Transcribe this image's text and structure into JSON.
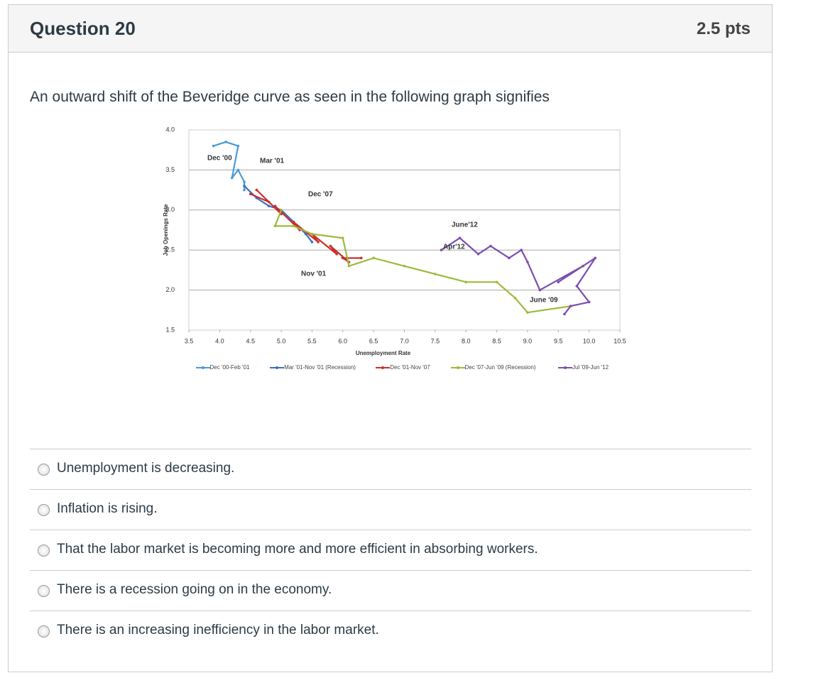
{
  "header": {
    "title": "Question 20",
    "points": "2.5 pts"
  },
  "question": "An outward shift of the Beveridge curve as seen in the following graph signifies",
  "chart_data": {
    "type": "line",
    "x_label": "Unemployment Rate",
    "y_label": "Job Openings Rate",
    "xlim": [
      3.5,
      10.5
    ],
    "xticks": [
      3.5,
      {
        "value": 4,
        "label": "4.0"
      },
      4.5,
      {
        "value": 5,
        "label": "5.0"
      },
      5.5,
      {
        "value": 6,
        "label": "6.0"
      },
      6.5,
      {
        "value": 7,
        "label": "7.0"
      },
      7.5,
      {
        "value": 8,
        "label": "8.0"
      },
      8.5,
      {
        "value": 9,
        "label": "9.0"
      },
      9.5,
      {
        "value": 10,
        "label": "10.0"
      },
      10.5
    ],
    "ylim": [
      1.5,
      4.0
    ],
    "yticks": [
      1.5,
      {
        "value": 2,
        "label": "2.0"
      },
      2.5,
      {
        "value": 3,
        "label": "3.0"
      },
      3.5,
      {
        "value": 4,
        "label": "4.0"
      }
    ],
    "grid": true,
    "annotations": [
      "Dec '00",
      "Mar '01",
      "Dec '07",
      "Nov '01",
      "June'12",
      "Apr'12",
      "June '09"
    ],
    "series": [
      {
        "name": "Dec '00-Feb '01",
        "color": "#4a9bd4",
        "x": [
          3.9,
          4.1,
          4.3,
          4.2,
          4.3,
          4.4,
          4.4
        ],
        "values": [
          3.8,
          3.85,
          3.8,
          3.4,
          3.5,
          3.35,
          3.25
        ]
      },
      {
        "name": "Mar '01-Nov '01 (Recession)",
        "color": "#3a6fc0",
        "x": [
          4.4,
          4.6,
          4.8,
          5.0,
          5.2,
          5.4,
          5.5
        ],
        "values": [
          3.3,
          3.15,
          3.05,
          3.0,
          2.85,
          2.7,
          2.6
        ]
      },
      {
        "name": "Dec '01-Nov '07",
        "color": "#c9302c",
        "x": [
          4.5,
          4.8,
          4.6,
          5.0,
          4.9,
          5.3,
          5.2,
          5.6,
          5.5,
          5.9,
          5.8,
          6.1,
          6.0,
          6.3
        ],
        "values": [
          3.2,
          3.1,
          3.25,
          2.95,
          3.05,
          2.75,
          2.85,
          2.6,
          2.7,
          2.45,
          2.55,
          2.35,
          2.4,
          2.4
        ]
      },
      {
        "name": "Dec '07-Jun '09 (Recession)",
        "color": "#9bbb3b",
        "x": [
          5.0,
          4.9,
          5.2,
          5.5,
          6.0,
          6.1,
          6.5,
          7.0,
          7.5,
          8.0,
          8.5,
          8.8,
          9.0,
          9.7
        ],
        "values": [
          3.0,
          2.8,
          2.8,
          2.7,
          2.65,
          2.3,
          2.4,
          2.3,
          2.2,
          2.1,
          2.1,
          1.9,
          1.72,
          1.8
        ]
      },
      {
        "name": "Jul '09-Jun '12",
        "color": "#7b4fae",
        "x": [
          9.6,
          9.7,
          10.0,
          9.8,
          10.1,
          9.5,
          9.9,
          9.2,
          9.0,
          8.9,
          8.7,
          8.4,
          8.2,
          7.9,
          7.6
        ],
        "values": [
          1.7,
          1.8,
          1.85,
          2.05,
          2.4,
          2.1,
          2.3,
          2.0,
          2.35,
          2.5,
          2.4,
          2.55,
          2.45,
          2.65,
          2.5
        ]
      }
    ]
  },
  "options": [
    "Unemployment is decreasing.",
    "Inflation is rising.",
    "That the labor market is becoming more and more efficient in absorbing workers.",
    "There is a recession going on in the economy.",
    "There is an increasing inefficiency in the labor market."
  ]
}
